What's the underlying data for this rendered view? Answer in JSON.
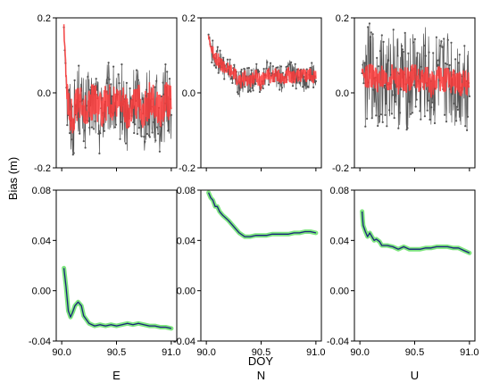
{
  "figure": {
    "ylabel": "Bias (m)",
    "xlabel": "DOY"
  },
  "chart_data": [
    {
      "type": "line",
      "panel": "top-E",
      "column_label": "",
      "xlim": [
        89.95,
        91.05
      ],
      "ylim": [
        -0.2,
        0.2
      ],
      "xticks": [
        90.0,
        90.5,
        91.0
      ],
      "xtick_labels": [],
      "yticks": [
        -0.2,
        0.0,
        0.2
      ],
      "ytick_labels": [
        "-0.2",
        "0.0",
        "0.2"
      ],
      "series": [
        {
          "style": "raw",
          "color": "#555555",
          "x": [
            90.02,
            90.05,
            90.08,
            90.1,
            90.15,
            90.2,
            90.25,
            90.3,
            90.35,
            90.4,
            90.45,
            90.5,
            90.55,
            90.6,
            90.65,
            90.7,
            90.75,
            90.8,
            90.85,
            90.9,
            90.95,
            91.0
          ],
          "y": [
            0.18,
            -0.02,
            -0.06,
            -0.08,
            -0.01,
            -0.06,
            -0.04,
            -0.02,
            -0.07,
            -0.03,
            -0.01,
            -0.05,
            -0.02,
            -0.08,
            -0.03,
            -0.01,
            -0.06,
            -0.02,
            -0.04,
            -0.07,
            -0.02,
            -0.03
          ],
          "amplitude": 0.1
        },
        {
          "style": "smooth",
          "color": "#ff3b3b",
          "x": [
            90.02,
            90.05,
            90.08,
            90.1,
            90.15,
            90.2,
            90.25,
            90.3,
            90.35,
            90.4,
            90.45,
            90.5,
            90.55,
            90.6,
            90.65,
            90.7,
            90.75,
            90.8,
            90.85,
            90.9,
            90.95,
            91.0
          ],
          "y": [
            0.17,
            -0.02,
            -0.05,
            -0.06,
            -0.02,
            -0.05,
            -0.03,
            -0.02,
            -0.05,
            -0.03,
            -0.02,
            -0.04,
            -0.02,
            -0.06,
            -0.03,
            -0.02,
            -0.05,
            -0.02,
            -0.03,
            -0.05,
            -0.02,
            -0.03
          ],
          "amplitude": 0.05
        }
      ]
    },
    {
      "type": "line",
      "panel": "top-N",
      "column_label": "",
      "xlim": [
        89.95,
        91.05
      ],
      "ylim": [
        -0.2,
        0.2
      ],
      "xticks": [
        90.0,
        90.5,
        91.0
      ],
      "xtick_labels": [],
      "yticks": [
        -0.2,
        0.0,
        0.2
      ],
      "ytick_labels": [
        "-0.2",
        "0.0",
        "0.2"
      ],
      "series": [
        {
          "style": "raw",
          "color": "#555555",
          "x": [
            90.02,
            90.05,
            90.1,
            90.15,
            90.2,
            90.25,
            90.3,
            90.35,
            90.4,
            90.45,
            90.5,
            90.55,
            90.6,
            90.65,
            90.7,
            90.75,
            90.8,
            90.85,
            90.9,
            90.95,
            91.0
          ],
          "y": [
            0.16,
            0.11,
            0.09,
            0.07,
            0.06,
            0.05,
            0.02,
            0.04,
            0.03,
            0.05,
            0.03,
            0.06,
            0.04,
            0.05,
            0.03,
            0.06,
            0.04,
            0.05,
            0.03,
            0.05,
            0.04
          ],
          "amplitude": 0.035
        },
        {
          "style": "smooth",
          "color": "#ff3b3b",
          "x": [
            90.02,
            90.05,
            90.1,
            90.15,
            90.2,
            90.25,
            90.3,
            90.35,
            90.4,
            90.45,
            90.5,
            90.55,
            90.6,
            90.65,
            90.7,
            90.75,
            90.8,
            90.85,
            90.9,
            90.95,
            91.0
          ],
          "y": [
            0.15,
            0.11,
            0.09,
            0.07,
            0.06,
            0.05,
            0.03,
            0.04,
            0.03,
            0.05,
            0.03,
            0.05,
            0.04,
            0.05,
            0.03,
            0.05,
            0.04,
            0.05,
            0.04,
            0.05,
            0.04
          ],
          "amplitude": 0.02
        }
      ]
    },
    {
      "type": "line",
      "panel": "top-U",
      "column_label": "",
      "xlim": [
        89.95,
        91.05
      ],
      "ylim": [
        -0.2,
        0.2
      ],
      "xticks": [
        90.0,
        90.5,
        91.0
      ],
      "xtick_labels": [],
      "yticks": [
        -0.2,
        0.0,
        0.2
      ],
      "ytick_labels": [
        "-0.2",
        "0.0",
        "0.2"
      ],
      "series": [
        {
          "style": "raw",
          "color": "#555555",
          "x": [
            90.02,
            90.05,
            90.1,
            90.15,
            90.2,
            90.25,
            90.3,
            90.35,
            90.4,
            90.45,
            90.5,
            90.55,
            90.6,
            90.65,
            90.7,
            90.75,
            90.8,
            90.85,
            90.9,
            90.95,
            91.0
          ],
          "y": [
            0.08,
            0.04,
            0.06,
            0.02,
            0.05,
            0.01,
            0.07,
            0.03,
            0.04,
            0.02,
            0.06,
            0.03,
            0.05,
            0.01,
            0.04,
            0.02,
            0.05,
            0.03,
            0.02,
            0.04,
            0.02
          ],
          "amplitude": 0.13
        },
        {
          "style": "smooth",
          "color": "#ff3b3b",
          "x": [
            90.02,
            90.05,
            90.1,
            90.15,
            90.2,
            90.25,
            90.3,
            90.35,
            90.4,
            90.45,
            90.5,
            90.55,
            90.6,
            90.65,
            90.7,
            90.75,
            90.8,
            90.85,
            90.9,
            90.95,
            91.0
          ],
          "y": [
            0.06,
            0.04,
            0.05,
            0.03,
            0.04,
            0.02,
            0.05,
            0.03,
            0.04,
            0.03,
            0.05,
            0.03,
            0.04,
            0.02,
            0.04,
            0.03,
            0.04,
            0.03,
            0.02,
            0.03,
            0.02
          ],
          "amplitude": 0.035
        }
      ]
    },
    {
      "type": "line",
      "panel": "bottom-E",
      "column_label": "E",
      "xlim": [
        89.95,
        91.05
      ],
      "ylim": [
        -0.04,
        0.08
      ],
      "xticks": [
        90.0,
        90.5,
        91.0
      ],
      "xtick_labels": [
        "90.0",
        "90.5",
        "91.0"
      ],
      "yticks": [
        -0.04,
        0.0,
        0.04,
        0.08
      ],
      "ytick_labels": [
        "-0.04",
        "0.00",
        "0.04",
        "0.08"
      ],
      "series": [
        {
          "style": "band",
          "color": "#7fe67f",
          "x": [
            90.02,
            90.04,
            90.06,
            90.08,
            90.1,
            90.12,
            90.15,
            90.18,
            90.2,
            90.25,
            90.3,
            90.35,
            90.4,
            90.45,
            90.5,
            90.55,
            90.6,
            90.65,
            90.7,
            90.75,
            90.8,
            90.85,
            90.9,
            90.95,
            91.0
          ],
          "y": [
            0.018,
            0.003,
            -0.016,
            -0.021,
            -0.017,
            -0.012,
            -0.009,
            -0.012,
            -0.02,
            -0.026,
            -0.028,
            -0.027,
            -0.028,
            -0.027,
            -0.028,
            -0.027,
            -0.026,
            -0.027,
            -0.026,
            -0.027,
            -0.028,
            -0.028,
            -0.029,
            -0.029,
            -0.03
          ],
          "amplitude": 0
        },
        {
          "style": "line",
          "color": "#1a237e",
          "x": [
            90.02,
            90.04,
            90.06,
            90.08,
            90.1,
            90.12,
            90.15,
            90.18,
            90.2,
            90.25,
            90.3,
            90.35,
            90.4,
            90.45,
            90.5,
            90.55,
            90.6,
            90.65,
            90.7,
            90.75,
            90.8,
            90.85,
            90.9,
            90.95,
            91.0
          ],
          "y": [
            0.018,
            0.003,
            -0.016,
            -0.021,
            -0.017,
            -0.012,
            -0.009,
            -0.012,
            -0.02,
            -0.026,
            -0.028,
            -0.027,
            -0.028,
            -0.027,
            -0.028,
            -0.027,
            -0.026,
            -0.027,
            -0.026,
            -0.027,
            -0.028,
            -0.028,
            -0.029,
            -0.029,
            -0.03
          ],
          "amplitude": 0
        }
      ]
    },
    {
      "type": "line",
      "panel": "bottom-N",
      "column_label": "N",
      "xlim": [
        89.95,
        91.05
      ],
      "ylim": [
        -0.04,
        0.08
      ],
      "xticks": [
        90.0,
        90.5,
        91.0
      ],
      "xtick_labels": [
        "90.0",
        "90.5",
        "91.0"
      ],
      "yticks": [
        -0.04,
        0.0,
        0.04,
        0.08
      ],
      "ytick_labels": [
        "-0.04",
        "0.00",
        "0.04",
        "0.08"
      ],
      "series": [
        {
          "style": "band",
          "color": "#7fe67f",
          "x": [
            90.02,
            90.04,
            90.06,
            90.08,
            90.1,
            90.12,
            90.15,
            90.2,
            90.25,
            90.3,
            90.35,
            90.4,
            90.45,
            90.5,
            90.55,
            90.6,
            90.65,
            90.7,
            90.75,
            90.8,
            90.85,
            90.9,
            90.95,
            91.0
          ],
          "y": [
            0.078,
            0.074,
            0.072,
            0.067,
            0.067,
            0.063,
            0.06,
            0.056,
            0.051,
            0.046,
            0.043,
            0.043,
            0.044,
            0.044,
            0.044,
            0.045,
            0.045,
            0.045,
            0.045,
            0.046,
            0.046,
            0.047,
            0.047,
            0.046
          ],
          "amplitude": 0
        },
        {
          "style": "line",
          "color": "#1a237e",
          "x": [
            90.02,
            90.04,
            90.06,
            90.08,
            90.1,
            90.12,
            90.15,
            90.2,
            90.25,
            90.3,
            90.35,
            90.4,
            90.45,
            90.5,
            90.55,
            90.6,
            90.65,
            90.7,
            90.75,
            90.8,
            90.85,
            90.9,
            90.95,
            91.0
          ],
          "y": [
            0.078,
            0.074,
            0.072,
            0.067,
            0.067,
            0.063,
            0.06,
            0.056,
            0.051,
            0.046,
            0.043,
            0.043,
            0.044,
            0.044,
            0.044,
            0.045,
            0.045,
            0.045,
            0.045,
            0.046,
            0.046,
            0.047,
            0.047,
            0.046
          ],
          "amplitude": 0
        }
      ]
    },
    {
      "type": "line",
      "panel": "bottom-U",
      "column_label": "U",
      "xlim": [
        89.95,
        91.05
      ],
      "ylim": [
        -0.04,
        0.08
      ],
      "xticks": [
        90.0,
        90.5,
        91.0
      ],
      "xtick_labels": [
        "90.0",
        "90.5",
        "91.0"
      ],
      "yticks": [
        -0.04,
        0.0,
        0.04,
        0.08
      ],
      "ytick_labels": [
        "-0.04",
        "0.00",
        "0.04",
        "0.08"
      ],
      "series": [
        {
          "style": "band",
          "color": "#7fe67f",
          "x": [
            90.02,
            90.03,
            90.05,
            90.07,
            90.09,
            90.11,
            90.13,
            90.15,
            90.18,
            90.2,
            90.25,
            90.3,
            90.35,
            90.4,
            90.45,
            90.5,
            90.55,
            90.6,
            90.65,
            90.7,
            90.75,
            90.8,
            90.85,
            90.9,
            90.95,
            91.0
          ],
          "y": [
            0.063,
            0.052,
            0.047,
            0.043,
            0.046,
            0.043,
            0.04,
            0.041,
            0.039,
            0.036,
            0.036,
            0.035,
            0.033,
            0.035,
            0.033,
            0.033,
            0.033,
            0.034,
            0.034,
            0.035,
            0.035,
            0.035,
            0.034,
            0.034,
            0.032,
            0.03
          ],
          "amplitude": 0
        },
        {
          "style": "line",
          "color": "#1a237e",
          "x": [
            90.02,
            90.03,
            90.05,
            90.07,
            90.09,
            90.11,
            90.13,
            90.15,
            90.18,
            90.2,
            90.25,
            90.3,
            90.35,
            90.4,
            90.45,
            90.5,
            90.55,
            90.6,
            90.65,
            90.7,
            90.75,
            90.8,
            90.85,
            90.9,
            90.95,
            91.0
          ],
          "y": [
            0.063,
            0.052,
            0.047,
            0.043,
            0.046,
            0.043,
            0.04,
            0.041,
            0.039,
            0.036,
            0.036,
            0.035,
            0.033,
            0.035,
            0.033,
            0.033,
            0.033,
            0.034,
            0.034,
            0.035,
            0.035,
            0.035,
            0.034,
            0.034,
            0.032,
            0.03
          ],
          "amplitude": 0
        }
      ]
    }
  ]
}
